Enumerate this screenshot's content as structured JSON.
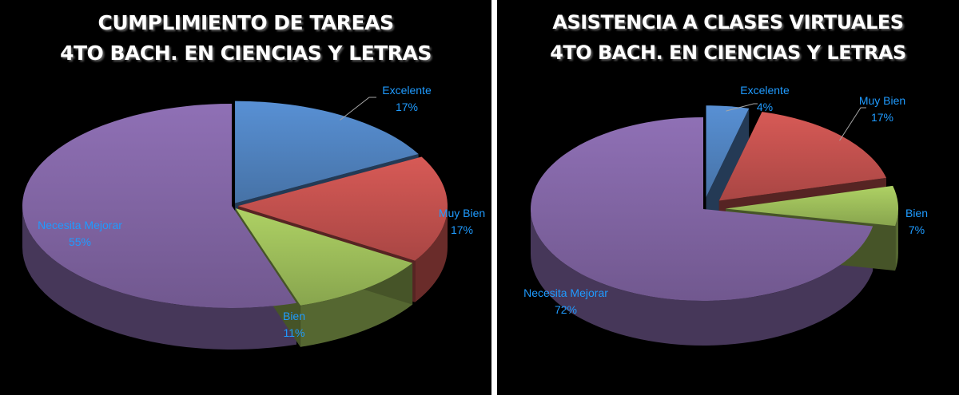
{
  "chart_data": [
    {
      "type": "pie",
      "title": "CUMPLIMIENTO DE TAREAS",
      "subtitle": "4TO BACH. EN CIENCIAS Y LETRAS",
      "categories": [
        "Excelente",
        "Muy Bien",
        "Bien",
        "Necesita Mejorar"
      ],
      "values": [
        17,
        17,
        11,
        55
      ],
      "value_labels": [
        "17%",
        "17%",
        "11%",
        "55%"
      ],
      "colors": [
        "#4f81bd",
        "#c0504d",
        "#9bbb59",
        "#8064a2"
      ],
      "style": "3d-exploded",
      "label_color": "#1f9bff"
    },
    {
      "type": "pie",
      "title": "ASISTENCIA A CLASES VIRTUALES",
      "subtitle": "4TO BACH. EN CIENCIAS Y LETRAS",
      "categories": [
        "Excelente",
        "Muy Bien",
        "Bien",
        "Necesita Mejorar"
      ],
      "values": [
        4,
        17,
        7,
        72
      ],
      "value_labels": [
        "4%",
        "17%",
        "7%",
        "72%"
      ],
      "colors": [
        "#4f81bd",
        "#c0504d",
        "#9bbb59",
        "#8064a2"
      ],
      "style": "3d-exploded",
      "label_color": "#1f9bff"
    }
  ]
}
